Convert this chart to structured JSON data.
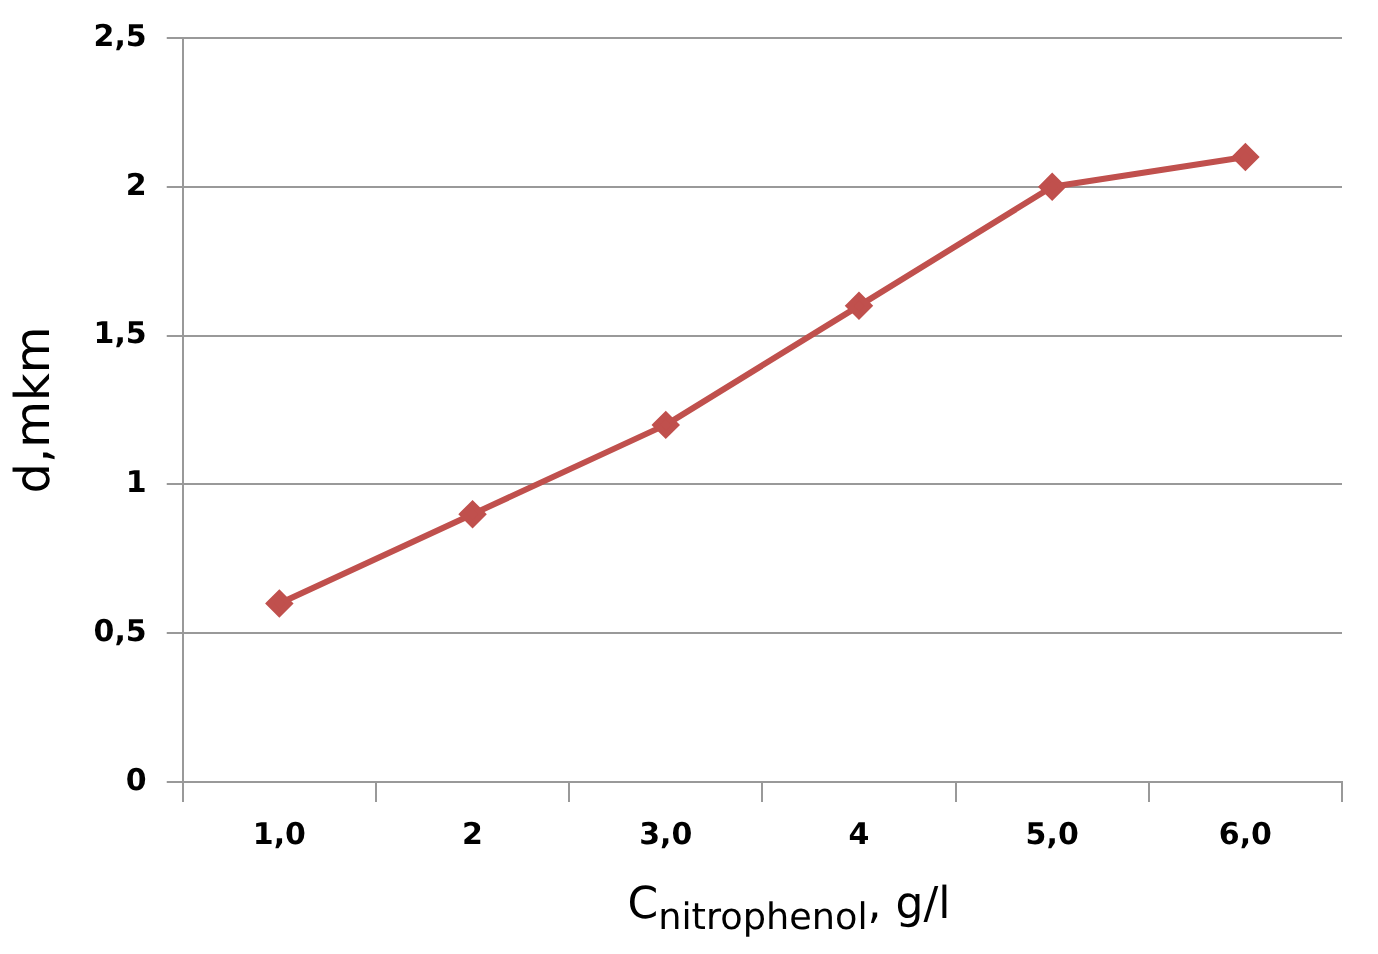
{
  "chart_data": {
    "type": "line",
    "xlabel": "C$_{nitrophenol}$, g/l",
    "ylabel": "d,mkm",
    "categories": [
      "1,0",
      "2",
      "3,0",
      "4",
      "5,0",
      "6,0"
    ],
    "series": [
      {
        "color": "#c0504d",
        "values": [
          0.6,
          0.9,
          1.2,
          1.6,
          2.0,
          2.1
        ]
      }
    ],
    "ylim": [
      0,
      2.5
    ],
    "yticks": [
      0,
      {
        "value": 0.5,
        "label": "0,5"
      },
      1,
      {
        "value": 1.5,
        "label": "1,5"
      },
      2,
      {
        "value": 2.5,
        "label": "2,5"
      }
    ],
    "grid": "y",
    "legend": false,
    "marker": "diamond",
    "line_style": "solid"
  }
}
